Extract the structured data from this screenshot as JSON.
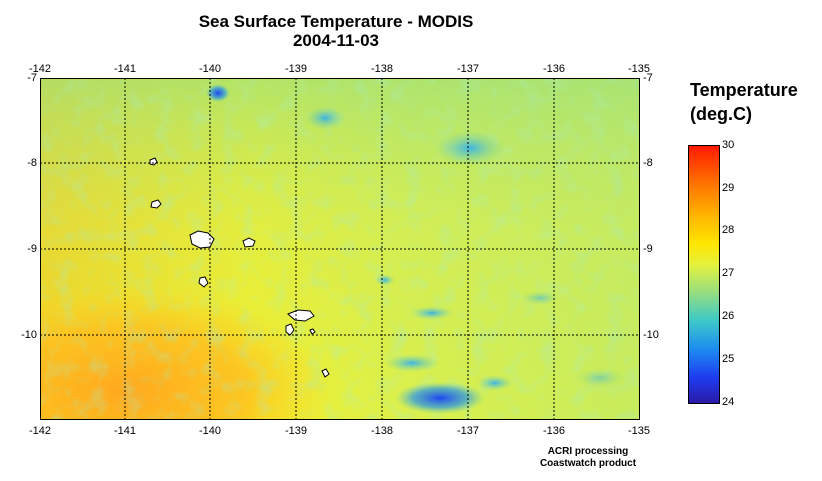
{
  "title": {
    "line1": "Sea Surface Temperature - MODIS",
    "line2": "2004-11-03"
  },
  "map": {
    "lon_ticks": [
      "-142",
      "-141",
      "-140",
      "-139",
      "-138",
      "-137",
      "-136",
      "-135"
    ],
    "lat_ticks": [
      "-7",
      "-8",
      "-9",
      "-10"
    ],
    "lon_range": [
      -142,
      -135
    ],
    "lat_range": [
      -11,
      -7
    ],
    "gridlines": true,
    "colors": {
      "land": "#ffffff",
      "coast": "#000000",
      "warm": "#ffb400",
      "cool": "#1e3cf0"
    }
  },
  "colorbar": {
    "title_line1": "Temperature",
    "title_line2": "(deg.C)",
    "ticks": [
      "30",
      "29",
      "28",
      "27",
      "26",
      "25",
      "24"
    ],
    "range": [
      24,
      30
    ]
  },
  "footer": {
    "line1": "ACRI processing",
    "line2": "Coastwatch product"
  }
}
